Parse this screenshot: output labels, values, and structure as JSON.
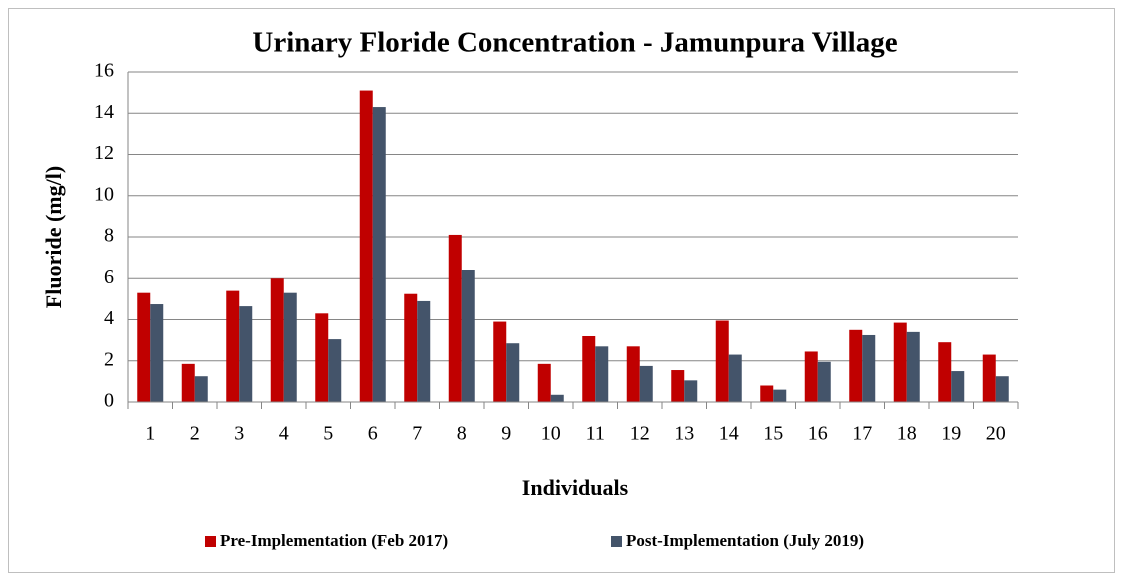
{
  "chart_data": {
    "type": "bar",
    "title": "Urinary Floride Concentration - Jamunpura Village",
    "x_label": "Individuals",
    "y_label": "Fluoride (mg/l)",
    "categories": [
      "1",
      "2",
      "3",
      "4",
      "5",
      "6",
      "7",
      "8",
      "9",
      "10",
      "11",
      "12",
      "13",
      "14",
      "15",
      "16",
      "17",
      "18",
      "19",
      "20"
    ],
    "series": [
      {
        "name": "Pre-Implementation (Feb 2017)",
        "color": "#c00000",
        "values": [
          5.3,
          1.85,
          5.4,
          6.0,
          4.3,
          15.1,
          5.25,
          8.1,
          3.9,
          1.85,
          3.2,
          2.7,
          1.55,
          3.95,
          0.8,
          2.45,
          3.5,
          3.85,
          2.9,
          2.3
        ]
      },
      {
        "name": "Post-Implementation (July 2019)",
        "color": "#44546a",
        "values": [
          4.75,
          1.25,
          4.65,
          5.3,
          3.05,
          14.3,
          4.9,
          6.4,
          2.85,
          0.35,
          2.7,
          1.75,
          1.05,
          2.3,
          0.6,
          1.95,
          3.25,
          3.4,
          1.5,
          1.25
        ]
      }
    ],
    "ylim": [
      0,
      16
    ],
    "yticks": [
      0,
      2,
      4,
      6,
      8,
      10,
      12,
      14,
      16
    ],
    "grid": true,
    "legend": "bottom"
  }
}
